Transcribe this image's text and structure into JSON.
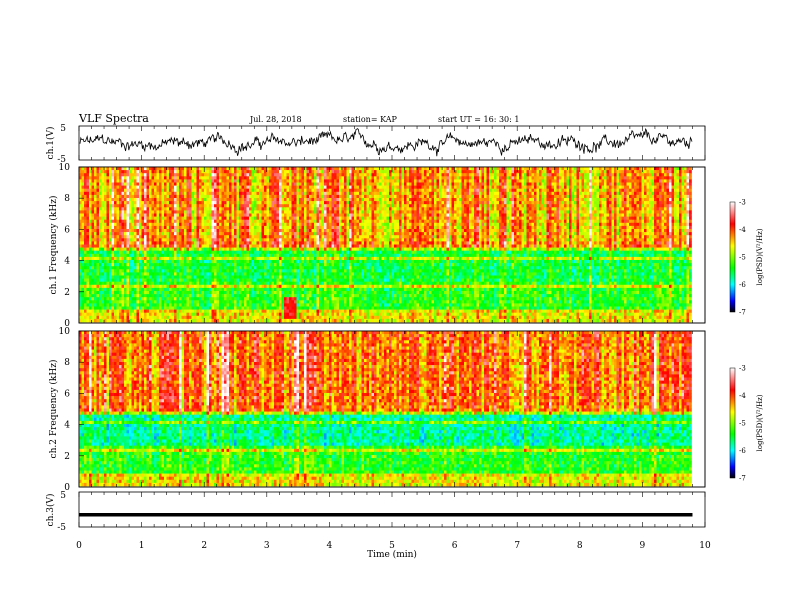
{
  "header": {
    "title": "VLF Spectra",
    "date": "Jul. 28, 2018",
    "station": "station= KAP",
    "start": "start UT = 16: 30: 1"
  },
  "colors": {
    "scale": [
      "#ffffff",
      "#ff0000",
      "#ffff00",
      "#00ff00",
      "#00ffff",
      "#0000ff",
      "#000000"
    ]
  },
  "chart_data": [
    {
      "id": "ch1-waveform",
      "type": "line",
      "ylabel": "ch.1(V)",
      "ylim": [
        -5,
        5
      ],
      "yticks": [
        "5",
        "-5"
      ],
      "xlim": [
        0,
        10
      ],
      "series": [
        {
          "values_description_omitted": true
        }
      ]
    },
    {
      "id": "ch1-spectrogram",
      "type": "heatmap",
      "ylabel": "ch.1 Frequency (kHz)",
      "ylim": [
        0,
        10
      ],
      "yticks": [
        "0",
        "2",
        "4",
        "6",
        "8",
        "10"
      ],
      "xlim": [
        0,
        10
      ],
      "colorbar": {
        "range": [
          -7,
          -3
        ],
        "ticks": [
          "-3",
          "-4",
          "-5",
          "-6",
          "-7"
        ],
        "label": "log(PSD)(V²/Hz)"
      }
    },
    {
      "id": "ch2-spectrogram",
      "type": "heatmap",
      "ylabel": "ch.2 Frequency (kHz)",
      "ylim": [
        0,
        10
      ],
      "yticks": [
        "0",
        "2",
        "4",
        "6",
        "8",
        "10"
      ],
      "xlim": [
        0,
        10
      ],
      "colorbar": {
        "range": [
          -7,
          -3
        ],
        "ticks": [
          "-3",
          "-4",
          "-5",
          "-6",
          "-7"
        ],
        "label": "log(PSD)(V²/Hz)"
      }
    },
    {
      "id": "ch3-waveform",
      "type": "line",
      "ylabel": "ch.3(V)",
      "ylim": [
        -5,
        5
      ],
      "yticks": [
        "5",
        "-5"
      ],
      "xlim": [
        0,
        10
      ],
      "series": [
        {
          "values": [
            -1.5,
            -1.5
          ]
        }
      ]
    }
  ],
  "xaxis": {
    "label": "Time (min)",
    "ticks": [
      "0",
      "1",
      "2",
      "3",
      "4",
      "5",
      "6",
      "7",
      "8",
      "9",
      "10"
    ]
  }
}
